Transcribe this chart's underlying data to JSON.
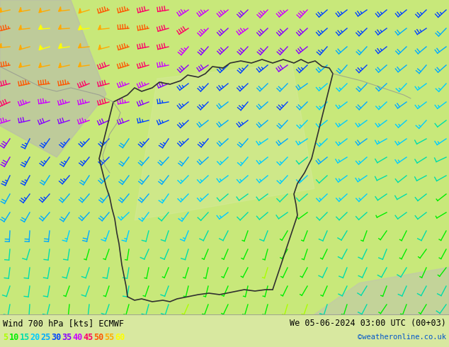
{
  "title_left": "Wind 700 hPa [kts] ECMWF",
  "title_right": "We 05-06-2024 03:00 UTC (00+03)",
  "copyright": "©weatheronline.co.uk",
  "legend_values": [
    5,
    10,
    15,
    20,
    25,
    30,
    35,
    40,
    45,
    50,
    55,
    60
  ],
  "legend_colors": [
    "#aaff00",
    "#00ee00",
    "#00ddaa",
    "#00ccff",
    "#00aaff",
    "#0044ff",
    "#8800ff",
    "#cc00ff",
    "#ff0066",
    "#ff5500",
    "#ffaa00",
    "#ffff00"
  ],
  "bg_color_main": "#c8e88a",
  "bg_color_land": "#d8e8a0",
  "bg_color_gray": "#c0c0b8",
  "border_color_dark": "#303030",
  "border_color_light": "#909090",
  "fig_width": 6.34,
  "fig_height": 4.9,
  "dpi": 100,
  "bottom_bar_color": "#f0f0f0",
  "bottom_bar_height": 46
}
